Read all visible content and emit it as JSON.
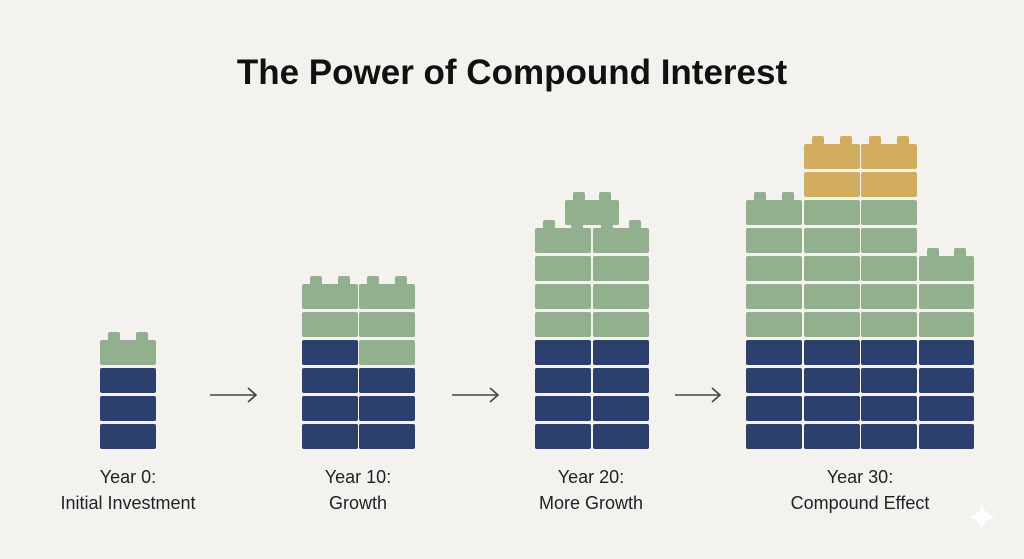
{
  "title": "The Power of Compound Interest",
  "stages": [
    {
      "year": "Year 0:",
      "caption": "Initial Investment"
    },
    {
      "year": "Year 10:",
      "caption": "Growth"
    },
    {
      "year": "Year 20:",
      "caption": "More Growth"
    },
    {
      "year": "Year 30:",
      "caption": "Compound Effect"
    }
  ]
}
